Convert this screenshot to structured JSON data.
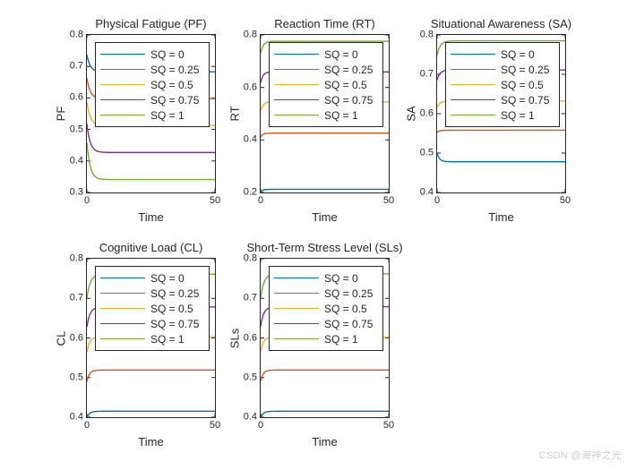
{
  "page": {
    "background": "#ffffff",
    "watermark": "CSDN @海神之光",
    "watermark_color": "#cdcdcd",
    "axis_color": "#262626"
  },
  "palette": {
    "matlab_blue": "#0072BD",
    "matlab_orange": "#D95319",
    "matlab_yellow": "#EDB120",
    "matlab_purple": "#7E2F8E",
    "matlab_green": "#77AC30"
  },
  "curve_model": "v(t) = end + (start - end) * exp(-t / tau), t in [0,50]",
  "chart_data": [
    {
      "id": "pf",
      "type": "line",
      "title": "Physical Fatigue (PF)",
      "xlabel": "Time",
      "ylabel": "PF",
      "xlim": [
        0,
        50
      ],
      "ylim": [
        0.3,
        0.8
      ],
      "xticks": [
        "0",
        "50"
      ],
      "yticks": [
        "0.3",
        "0.4",
        "0.5",
        "0.6",
        "0.7",
        "0.8"
      ],
      "grid": false,
      "legend_position": "upper-left-inside",
      "series": [
        {
          "name": "SQ = 0",
          "color": "#0072BD",
          "start": 0.737,
          "end": 0.683,
          "tau": 1.3
        },
        {
          "name": "SQ = 0.25",
          "color": "#D95319",
          "start": 0.663,
          "end": 0.598,
          "tau": 1.3
        },
        {
          "name": "SQ = 0.5",
          "color": "#EDB120",
          "start": 0.588,
          "end": 0.513,
          "tau": 1.3
        },
        {
          "name": "SQ = 0.75",
          "color": "#7E2F8E",
          "start": 0.518,
          "end": 0.427,
          "tau": 1.3
        },
        {
          "name": "SQ = 1",
          "color": "#77AC30",
          "start": 0.458,
          "end": 0.341,
          "tau": 1.3
        }
      ]
    },
    {
      "id": "rt",
      "type": "line",
      "title": "Reaction Time (RT)",
      "xlabel": "Time",
      "ylabel": "RT",
      "xlim": [
        0,
        50
      ],
      "ylim": [
        0.2,
        0.8
      ],
      "xticks": [
        "0",
        "50"
      ],
      "yticks": [
        "0.2",
        "0.4",
        "0.6",
        "0.8"
      ],
      "grid": false,
      "legend_position": "upper-left-inside",
      "series": [
        {
          "name": "SQ = 0",
          "color": "#0072BD",
          "start": 0.201,
          "end": 0.212,
          "tau": 0.8
        },
        {
          "name": "SQ = 0.25",
          "color": "#D95319",
          "start": 0.41,
          "end": 0.426,
          "tau": 0.8
        },
        {
          "name": "SQ = 0.5",
          "color": "#EDB120",
          "start": 0.508,
          "end": 0.545,
          "tau": 0.9
        },
        {
          "name": "SQ = 0.75",
          "color": "#7E2F8E",
          "start": 0.618,
          "end": 0.659,
          "tau": 0.9
        },
        {
          "name": "SQ = 1",
          "color": "#77AC30",
          "start": 0.731,
          "end": 0.776,
          "tau": 1.0
        }
      ]
    },
    {
      "id": "sa",
      "type": "line",
      "title": "Situational Awareness (SA)",
      "xlabel": "Time",
      "ylabel": "SA",
      "xlim": [
        0,
        50
      ],
      "ylim": [
        0.4,
        0.8
      ],
      "xticks": [
        "0",
        "50"
      ],
      "yticks": [
        "0.4",
        "0.5",
        "0.6",
        "0.7",
        "0.8"
      ],
      "grid": false,
      "legend_position": "upper-left-inside",
      "series": [
        {
          "name": "SQ = 0",
          "color": "#0072BD",
          "start": 0.5,
          "end": 0.478,
          "tau": 1.0
        },
        {
          "name": "SQ = 0.25",
          "color": "#D95319",
          "start": 0.553,
          "end": 0.558,
          "tau": 1.0
        },
        {
          "name": "SQ = 0.5",
          "color": "#EDB120",
          "start": 0.616,
          "end": 0.632,
          "tau": 1.0
        },
        {
          "name": "SQ = 0.75",
          "color": "#7E2F8E",
          "start": 0.686,
          "end": 0.711,
          "tau": 1.1
        },
        {
          "name": "SQ = 1",
          "color": "#77AC30",
          "start": 0.749,
          "end": 0.785,
          "tau": 1.2
        }
      ]
    },
    {
      "id": "cl",
      "type": "line",
      "title": "Cognitive Load (CL)",
      "xlabel": "Time",
      "ylabel": "CL",
      "xlim": [
        0,
        50
      ],
      "ylim": [
        0.4,
        0.8
      ],
      "xticks": [
        "0",
        "50"
      ],
      "yticks": [
        "0.4",
        "0.5",
        "0.6",
        "0.7",
        "0.8"
      ],
      "grid": false,
      "legend_position": "upper-left-inside",
      "series": [
        {
          "name": "SQ = 0",
          "color": "#0072BD",
          "start": 0.398,
          "end": 0.415,
          "tau": 1.0
        },
        {
          "name": "SQ = 0.25",
          "color": "#D95319",
          "start": 0.49,
          "end": 0.519,
          "tau": 1.0
        },
        {
          "name": "SQ = 0.5",
          "color": "#EDB120",
          "start": 0.564,
          "end": 0.603,
          "tau": 1.1
        },
        {
          "name": "SQ = 0.75",
          "color": "#7E2F8E",
          "start": 0.628,
          "end": 0.678,
          "tau": 1.2
        },
        {
          "name": "SQ = 1",
          "color": "#77AC30",
          "start": 0.7,
          "end": 0.761,
          "tau": 1.3
        }
      ]
    },
    {
      "id": "sls",
      "type": "line",
      "title": "Short-Term Stress Level (SLs)",
      "xlabel": "Time",
      "ylabel": "SLs",
      "xlim": [
        0,
        50
      ],
      "ylim": [
        0.4,
        0.8
      ],
      "xticks": [
        "0",
        "50"
      ],
      "yticks": [
        "0.4",
        "0.5",
        "0.6",
        "0.7",
        "0.8"
      ],
      "grid": false,
      "legend_position": "upper-left-inside",
      "series": [
        {
          "name": "SQ = 0",
          "color": "#0072BD",
          "start": 0.398,
          "end": 0.415,
          "tau": 1.0
        },
        {
          "name": "SQ = 0.25",
          "color": "#D95319",
          "start": 0.491,
          "end": 0.519,
          "tau": 1.0
        },
        {
          "name": "SQ = 0.5",
          "color": "#EDB120",
          "start": 0.566,
          "end": 0.602,
          "tau": 1.1
        },
        {
          "name": "SQ = 0.75",
          "color": "#7E2F8E",
          "start": 0.63,
          "end": 0.679,
          "tau": 1.2
        },
        {
          "name": "SQ = 1",
          "color": "#77AC30",
          "start": 0.701,
          "end": 0.762,
          "tau": 1.3
        }
      ]
    }
  ]
}
